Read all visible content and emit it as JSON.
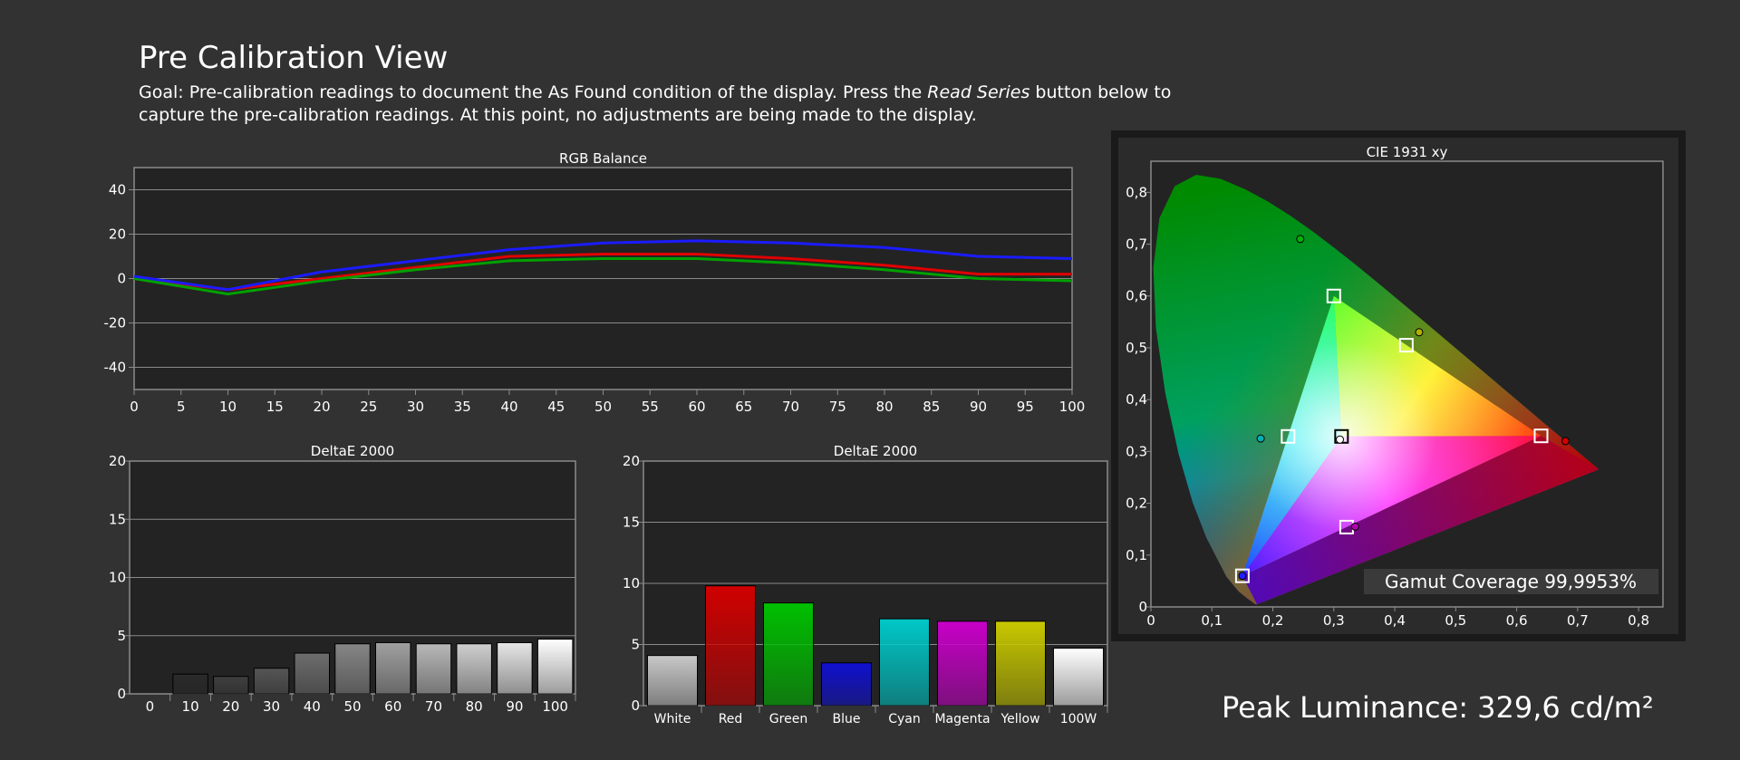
{
  "title": "Pre Calibration View",
  "description": {
    "before": "Goal: Pre-calibration readings to document the As Found condition of the display. Press the ",
    "emphasis": "Read Series",
    "after": " button below to capture the pre-calibration readings. At this point, no adjustments are being made to the display."
  },
  "peak": {
    "label": "Peak Luminance:",
    "value": "329,6 cd/m²"
  },
  "colors": {
    "background": "#323232",
    "plot_background": "#232323",
    "grid": "#8a8a8a",
    "text": "#ffffff"
  },
  "chart_data": [
    {
      "id": "rgb",
      "type": "line",
      "title": "RGB Balance",
      "x": [
        0,
        10,
        20,
        30,
        40,
        50,
        60,
        70,
        80,
        90,
        100
      ],
      "xticks": [
        0,
        5,
        10,
        15,
        20,
        25,
        30,
        35,
        40,
        45,
        50,
        55,
        60,
        65,
        70,
        75,
        80,
        85,
        90,
        95,
        100
      ],
      "xlim": [
        0,
        100
      ],
      "ylim": [
        -50,
        50
      ],
      "yticks": [
        -40,
        -20,
        0,
        20,
        40
      ],
      "grid": true,
      "series": [
        {
          "color": "#e00000",
          "values": [
            0,
            -5,
            0,
            5,
            10,
            11,
            11,
            9,
            6,
            2,
            2
          ]
        },
        {
          "color": "#00a000",
          "values": [
            0,
            -7,
            -1,
            4,
            8,
            9,
            9,
            7,
            4,
            0,
            -1
          ]
        },
        {
          "color": "#1b1bff",
          "values": [
            1,
            -5,
            3,
            8,
            13,
            16,
            17,
            16,
            14,
            10,
            9
          ]
        }
      ]
    },
    {
      "id": "de_gray",
      "type": "bar",
      "title": "DeltaE 2000",
      "categories": [
        "0",
        "10",
        "20",
        "30",
        "40",
        "50",
        "60",
        "70",
        "80",
        "90",
        "100"
      ],
      "values": [
        0,
        1.7,
        1.5,
        2.2,
        3.5,
        4.3,
        4.4,
        4.3,
        4.3,
        4.4,
        4.7
      ],
      "colors": [
        "#000000",
        "#2a2a2a",
        "#3f3f3f",
        "#555555",
        "#6d6d6d",
        "#868686",
        "#a0a0a0",
        "#b8b8b8",
        "#cfcfcf",
        "#e6e6e6",
        "#ffffff"
      ],
      "ylim": [
        0,
        20
      ],
      "yticks": [
        0,
        5,
        10,
        15,
        20
      ],
      "grid": true
    },
    {
      "id": "de_color",
      "type": "bar",
      "title": "DeltaE 2000",
      "categories": [
        "White",
        "Red",
        "Green",
        "Blue",
        "Cyan",
        "Magenta",
        "Yellow",
        "100W"
      ],
      "values": [
        4.1,
        9.8,
        8.4,
        3.5,
        7.1,
        6.9,
        6.9,
        4.7
      ],
      "colors": [
        "#c8c8c8",
        "#d00000",
        "#00c000",
        "#1010d0",
        "#00c8c8",
        "#c800c8",
        "#c8c800",
        "#ffffff"
      ],
      "ylim": [
        0,
        20
      ],
      "yticks": [
        0,
        5,
        10,
        15,
        20
      ],
      "grid": true
    },
    {
      "id": "cie",
      "type": "scatter",
      "title": "CIE 1931 xy",
      "xlim": [
        0,
        0.84
      ],
      "ylim": [
        0,
        0.86
      ],
      "xticks": [
        "0",
        "0,1",
        "0,2",
        "0,3",
        "0,4",
        "0,5",
        "0,6",
        "0,7",
        "0,8"
      ],
      "yticks": [
        "0",
        "0,1",
        "0,2",
        "0,3",
        "0,4",
        "0,5",
        "0,6",
        "0,7",
        "0,8"
      ],
      "targets": [
        {
          "name": "Red",
          "x": 0.64,
          "y": 0.33
        },
        {
          "name": "Green",
          "x": 0.3,
          "y": 0.6
        },
        {
          "name": "Blue",
          "x": 0.15,
          "y": 0.06
        },
        {
          "name": "Cyan",
          "x": 0.225,
          "y": 0.329
        },
        {
          "name": "Magenta",
          "x": 0.321,
          "y": 0.154
        },
        {
          "name": "Yellow",
          "x": 0.419,
          "y": 0.505
        },
        {
          "name": "White",
          "x": 0.3127,
          "y": 0.329
        }
      ],
      "measured": [
        {
          "name": "Red",
          "x": 0.68,
          "y": 0.32,
          "color": "#d00000"
        },
        {
          "name": "Green",
          "x": 0.245,
          "y": 0.71,
          "color": "#00b000"
        },
        {
          "name": "Blue",
          "x": 0.15,
          "y": 0.06,
          "color": "#2020ff"
        },
        {
          "name": "Cyan",
          "x": 0.18,
          "y": 0.325,
          "color": "#00b0b0"
        },
        {
          "name": "Magenta",
          "x": 0.335,
          "y": 0.155,
          "color": "#b000b0"
        },
        {
          "name": "Yellow",
          "x": 0.44,
          "y": 0.53,
          "color": "#b0b000"
        },
        {
          "name": "White",
          "x": 0.31,
          "y": 0.323,
          "color": "#ffffff"
        }
      ],
      "annotation": "Gamut Coverage 99,9953%"
    }
  ]
}
